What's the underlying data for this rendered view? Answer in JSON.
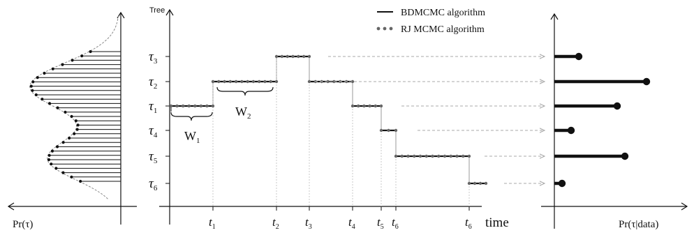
{
  "prior_panel": {
    "xlabel": "Pr(τ)"
  },
  "posterior_panel": {
    "xlabel": "Pr(τ|data)"
  },
  "main_panel": {
    "ylabel": "Tree",
    "xlabel": "time",
    "tree_labels": [
      {
        "sym": "τ",
        "sub": "3"
      },
      {
        "sym": "τ",
        "sub": "2"
      },
      {
        "sym": "τ",
        "sub": "1"
      },
      {
        "sym": "τ",
        "sub": "4"
      },
      {
        "sym": "τ",
        "sub": "5"
      },
      {
        "sym": "τ",
        "sub": "6"
      }
    ],
    "time_labels": [
      {
        "sym": "t",
        "sub": "1"
      },
      {
        "sym": "t",
        "sub": "2"
      },
      {
        "sym": "t",
        "sub": "3"
      },
      {
        "sym": "t",
        "sub": "4"
      },
      {
        "sym": "t",
        "sub": "5"
      },
      {
        "sym": "t",
        "sub": "6"
      },
      {
        "sym": "t",
        "sub": "6"
      }
    ],
    "waiting_times": [
      {
        "sym": "W",
        "sub": "1"
      },
      {
        "sym": "W",
        "sub": "2"
      }
    ]
  },
  "legend": [
    {
      "label": "BDMCMC algorithm",
      "style": "solid"
    },
    {
      "label": "RJ MCMC algorithm",
      "style": "dotted"
    }
  ],
  "colors": {
    "line": "#111111",
    "dots": "#666666",
    "dashed": "#bbbbbb"
  }
}
